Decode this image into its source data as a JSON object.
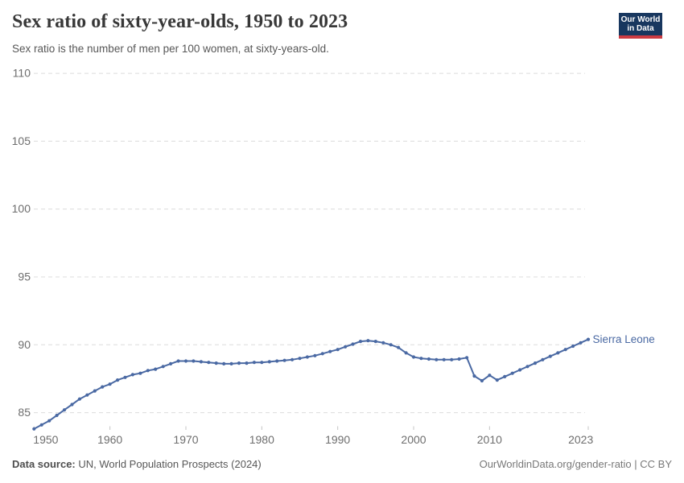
{
  "header": {
    "title": "Sex ratio of sixty-year-olds, 1950 to 2023",
    "subtitle": "Sex ratio is the number of men per 100 women, at sixty-years-old.",
    "logo_line1": "Our World",
    "logo_line2": "in Data"
  },
  "chart_data": {
    "type": "line",
    "title": "Sex ratio of sixty-year-olds, 1950 to 2023",
    "xlabel": "",
    "ylabel": "",
    "grid": "horizontal-dashed",
    "legend_position": "end-of-line-label",
    "ylim": [
      83.5,
      110
    ],
    "yticks": [
      85,
      90,
      95,
      100,
      105,
      110
    ],
    "xticks": [
      1950,
      1960,
      1970,
      1980,
      1990,
      2000,
      2010,
      2023
    ],
    "xlim": [
      1950,
      2023
    ],
    "series": [
      {
        "name": "Sierra Leone",
        "color": "#4a69a3",
        "x": [
          1950,
          1951,
          1952,
          1953,
          1954,
          1955,
          1956,
          1957,
          1958,
          1959,
          1960,
          1961,
          1962,
          1963,
          1964,
          1965,
          1966,
          1967,
          1968,
          1969,
          1970,
          1971,
          1972,
          1973,
          1974,
          1975,
          1976,
          1977,
          1978,
          1979,
          1980,
          1981,
          1982,
          1983,
          1984,
          1985,
          1986,
          1987,
          1988,
          1989,
          1990,
          1991,
          1992,
          1993,
          1994,
          1995,
          1996,
          1997,
          1998,
          1999,
          2000,
          2001,
          2002,
          2003,
          2004,
          2005,
          2006,
          2007,
          2008,
          2009,
          2010,
          2011,
          2012,
          2013,
          2014,
          2015,
          2016,
          2017,
          2018,
          2019,
          2020,
          2021,
          2022,
          2023
        ],
        "values": [
          83.8,
          84.1,
          84.4,
          84.8,
          85.2,
          85.6,
          86.0,
          86.3,
          86.6,
          86.9,
          87.1,
          87.4,
          87.6,
          87.8,
          87.9,
          88.1,
          88.2,
          88.4,
          88.6,
          88.8,
          88.8,
          88.8,
          88.75,
          88.7,
          88.65,
          88.6,
          88.6,
          88.65,
          88.65,
          88.7,
          88.7,
          88.75,
          88.8,
          88.85,
          88.9,
          89.0,
          89.1,
          89.2,
          89.35,
          89.5,
          89.65,
          89.85,
          90.05,
          90.25,
          90.3,
          90.25,
          90.15,
          90.0,
          89.8,
          89.4,
          89.1,
          89.0,
          88.95,
          88.9,
          88.9,
          88.9,
          88.95,
          89.05,
          87.7,
          87.35,
          87.75,
          87.4,
          87.65,
          87.9,
          88.15,
          88.4,
          88.65,
          88.9,
          89.15,
          89.4,
          89.65,
          89.9,
          90.15,
          90.4
        ]
      }
    ]
  },
  "footer": {
    "source_label": "Data source:",
    "source_text": " UN, World Population Prospects (2024)",
    "right_text": "OurWorldinData.org/gender-ratio | CC BY"
  },
  "colors": {
    "title": "#383838",
    "subtitle": "#575757",
    "tick_text": "#6e6e6e",
    "gridline": "#dcdcdc",
    "tick_mark": "#c4c4c4",
    "line": "#4a69a3",
    "logo_bg": "#18375f",
    "logo_red": "#cc3b42"
  }
}
